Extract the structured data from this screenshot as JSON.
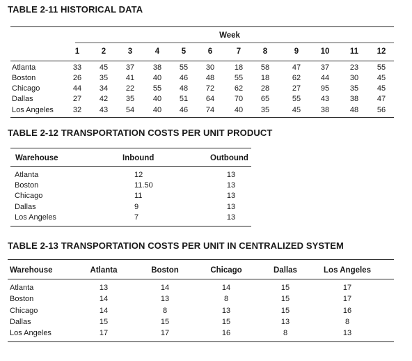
{
  "table1": {
    "title": "TABLE 2-11 HISTORICAL DATA",
    "group_header": "Week",
    "weeks": [
      "1",
      "2",
      "3",
      "4",
      "5",
      "6",
      "7",
      "8",
      "9",
      "10",
      "11",
      "12"
    ],
    "rows": [
      {
        "name": "Atlanta",
        "values": [
          "33",
          "45",
          "37",
          "38",
          "55",
          "30",
          "18",
          "58",
          "47",
          "37",
          "23",
          "55"
        ]
      },
      {
        "name": "Boston",
        "values": [
          "26",
          "35",
          "41",
          "40",
          "46",
          "48",
          "55",
          "18",
          "62",
          "44",
          "30",
          "45"
        ]
      },
      {
        "name": "Chicago",
        "values": [
          "44",
          "34",
          "22",
          "55",
          "48",
          "72",
          "62",
          "28",
          "27",
          "95",
          "35",
          "45"
        ]
      },
      {
        "name": "Dallas",
        "values": [
          "27",
          "42",
          "35",
          "40",
          "51",
          "64",
          "70",
          "65",
          "55",
          "43",
          "38",
          "47"
        ]
      },
      {
        "name": "Los Angeles",
        "values": [
          "32",
          "43",
          "54",
          "40",
          "46",
          "74",
          "40",
          "35",
          "45",
          "38",
          "48",
          "56"
        ]
      }
    ]
  },
  "table2": {
    "title": "TABLE 2-12 TRANSPORTATION COSTS PER UNIT PRODUCT",
    "headers": [
      "Warehouse",
      "Inbound",
      "Outbound"
    ],
    "rows": [
      {
        "name": "Atlanta",
        "inbound": "12",
        "outbound": "13"
      },
      {
        "name": "Boston",
        "inbound": "11.50",
        "outbound": "13"
      },
      {
        "name": "Chicago",
        "inbound": "11",
        "outbound": "13"
      },
      {
        "name": "Dallas",
        "inbound": "9",
        "outbound": "13"
      },
      {
        "name": "Los Angeles",
        "inbound": "7",
        "outbound": "13"
      }
    ]
  },
  "table3": {
    "title": "TABLE 2-13 TRANSPORTATION COSTS PER UNIT IN CENTRALIZED SYSTEM",
    "headers": [
      "Warehouse",
      "Atlanta",
      "Boston",
      "Chicago",
      "Dallas",
      "Los Angeles"
    ],
    "rows": [
      {
        "name": "Atlanta",
        "values": [
          "13",
          "14",
          "14",
          "15",
          "17"
        ]
      },
      {
        "name": "Boston",
        "values": [
          "14",
          "13",
          "8",
          "15",
          "17"
        ]
      },
      {
        "name": "Chicago",
        "values": [
          "14",
          "8",
          "13",
          "15",
          "16"
        ]
      },
      {
        "name": "Dallas",
        "values": [
          "15",
          "15",
          "15",
          "13",
          "8"
        ]
      },
      {
        "name": "Los Angeles",
        "values": [
          "17",
          "17",
          "16",
          "8",
          "13"
        ]
      }
    ]
  }
}
